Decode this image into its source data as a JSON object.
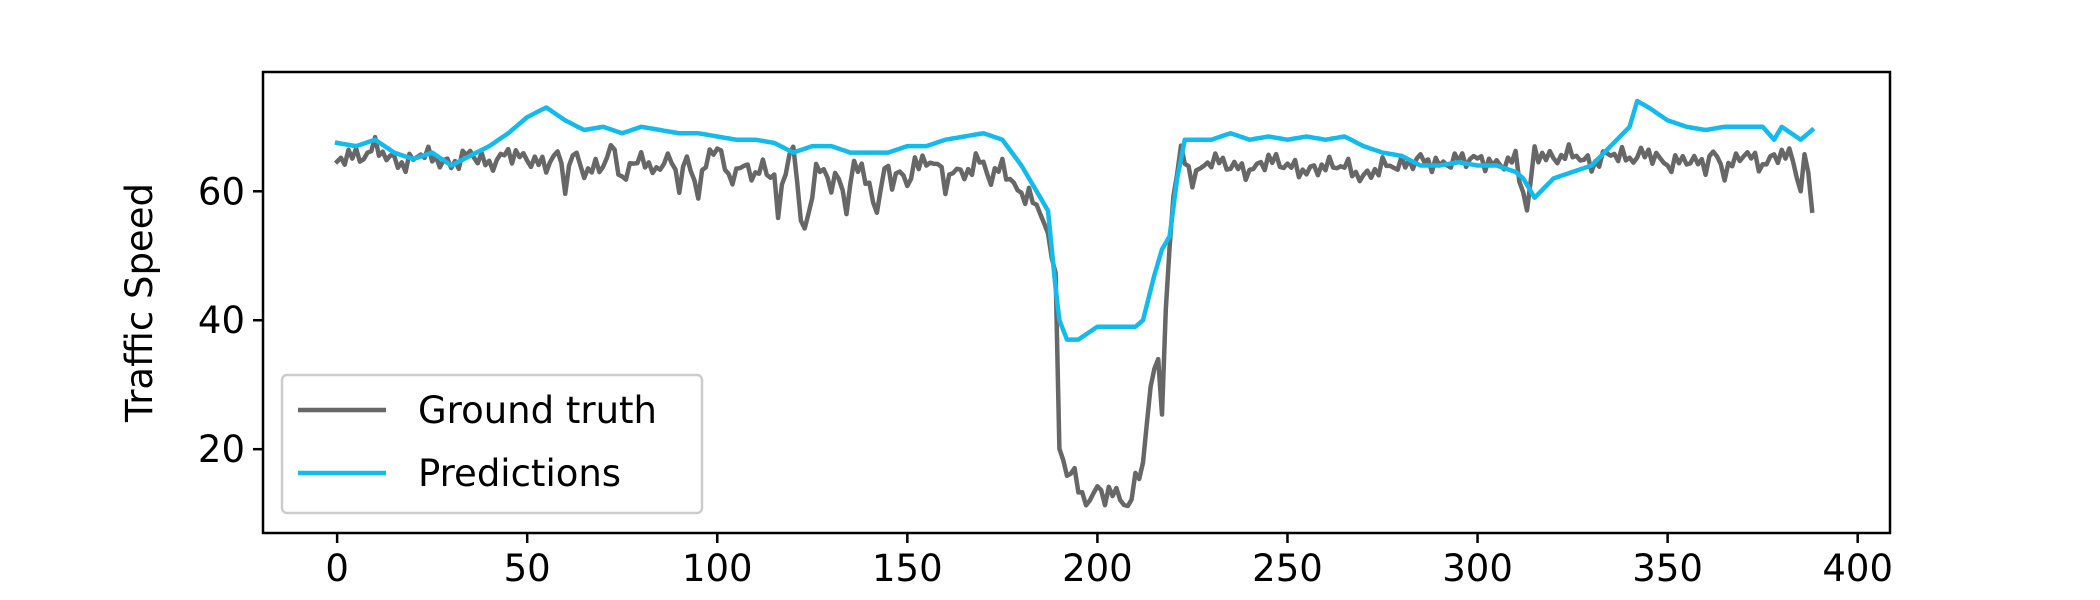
{
  "chart_data": {
    "type": "line",
    "title": "",
    "xlabel": "",
    "ylabel": "Traffic Speed",
    "xlim": [
      -19.5,
      408.5
    ],
    "ylim": [
      7.0,
      78.5
    ],
    "xticks": [
      0,
      50,
      100,
      150,
      200,
      250,
      300,
      350,
      400
    ],
    "yticks": [
      20,
      40,
      60
    ],
    "grid": false,
    "legend_position": "lower-left",
    "series": [
      {
        "name": "Ground truth",
        "color": "#676767",
        "anchors": [
          [
            0,
            64
          ],
          [
            3,
            66
          ],
          [
            6,
            65
          ],
          [
            10,
            67
          ],
          [
            14,
            65
          ],
          [
            18,
            64
          ],
          [
            22,
            66
          ],
          [
            26,
            65
          ],
          [
            30,
            64
          ],
          [
            35,
            66
          ],
          [
            40,
            64
          ],
          [
            45,
            66
          ],
          [
            50,
            65
          ],
          [
            55,
            64
          ],
          [
            58,
            66
          ],
          [
            60,
            61
          ],
          [
            62,
            66
          ],
          [
            65,
            63
          ],
          [
            70,
            64
          ],
          [
            72,
            67
          ],
          [
            75,
            62
          ],
          [
            78,
            64
          ],
          [
            80,
            66
          ],
          [
            82,
            63
          ],
          [
            85,
            64
          ],
          [
            88,
            65
          ],
          [
            90,
            61
          ],
          [
            92,
            65
          ],
          [
            95,
            60
          ],
          [
            98,
            66
          ],
          [
            100,
            67
          ],
          [
            103,
            62
          ],
          [
            105,
            63
          ],
          [
            108,
            64
          ],
          [
            110,
            62
          ],
          [
            112,
            64
          ],
          [
            115,
            62
          ],
          [
            116,
            56
          ],
          [
            118,
            64
          ],
          [
            120,
            67
          ],
          [
            122,
            55
          ],
          [
            124,
            56
          ],
          [
            126,
            63
          ],
          [
            128,
            64
          ],
          [
            130,
            60
          ],
          [
            132,
            63
          ],
          [
            134,
            57
          ],
          [
            136,
            64
          ],
          [
            138,
            64
          ],
          [
            140,
            60
          ],
          [
            142,
            57
          ],
          [
            144,
            64
          ],
          [
            146,
            61
          ],
          [
            148,
            64
          ],
          [
            150,
            60
          ],
          [
            152,
            65
          ],
          [
            155,
            64
          ],
          [
            158,
            65
          ],
          [
            160,
            60
          ],
          [
            162,
            64
          ],
          [
            165,
            62
          ],
          [
            168,
            65
          ],
          [
            170,
            64
          ],
          [
            172,
            62
          ],
          [
            175,
            64
          ],
          [
            178,
            61
          ],
          [
            180,
            59
          ],
          [
            182,
            60
          ],
          [
            184,
            57
          ],
          [
            186,
            56
          ],
          [
            188,
            50
          ],
          [
            189,
            46
          ],
          [
            190,
            21
          ],
          [
            192,
            16
          ],
          [
            194,
            16
          ],
          [
            196,
            13
          ],
          [
            198,
            11
          ],
          [
            200,
            15
          ],
          [
            202,
            12
          ],
          [
            205,
            14
          ],
          [
            208,
            10
          ],
          [
            210,
            16
          ],
          [
            212,
            17
          ],
          [
            214,
            30
          ],
          [
            216,
            35
          ],
          [
            217,
            24
          ],
          [
            218,
            42
          ],
          [
            220,
            60
          ],
          [
            222,
            66
          ],
          [
            225,
            62
          ],
          [
            230,
            65
          ],
          [
            235,
            64
          ],
          [
            240,
            63
          ],
          [
            245,
            65
          ],
          [
            250,
            64
          ],
          [
            255,
            63
          ],
          [
            260,
            64
          ],
          [
            265,
            64
          ],
          [
            270,
            62
          ],
          [
            275,
            64
          ],
          [
            280,
            64
          ],
          [
            285,
            65
          ],
          [
            290,
            64
          ],
          [
            295,
            65
          ],
          [
            300,
            65
          ],
          [
            305,
            64
          ],
          [
            310,
            65
          ],
          [
            312,
            60
          ],
          [
            313,
            57
          ],
          [
            315,
            66
          ],
          [
            320,
            65
          ],
          [
            325,
            66
          ],
          [
            330,
            64
          ],
          [
            335,
            66
          ],
          [
            340,
            65
          ],
          [
            345,
            66
          ],
          [
            350,
            64
          ],
          [
            355,
            65
          ],
          [
            360,
            64
          ],
          [
            362,
            66
          ],
          [
            365,
            63
          ],
          [
            370,
            66
          ],
          [
            375,
            64
          ],
          [
            380,
            66
          ],
          [
            383,
            65
          ],
          [
            385,
            60
          ],
          [
            386,
            66
          ],
          [
            388,
            57
          ]
        ]
      },
      {
        "name": "Predictions",
        "color": "#12bbec",
        "anchors": [
          [
            0,
            67.5
          ],
          [
            5,
            67
          ],
          [
            10,
            68
          ],
          [
            15,
            66
          ],
          [
            20,
            65
          ],
          [
            25,
            66
          ],
          [
            30,
            64
          ],
          [
            35,
            65.5
          ],
          [
            40,
            67
          ],
          [
            45,
            69
          ],
          [
            50,
            71.5
          ],
          [
            55,
            73
          ],
          [
            60,
            71
          ],
          [
            65,
            69.5
          ],
          [
            70,
            70
          ],
          [
            75,
            69
          ],
          [
            80,
            70
          ],
          [
            85,
            69.5
          ],
          [
            90,
            69
          ],
          [
            95,
            69
          ],
          [
            100,
            68.5
          ],
          [
            105,
            68
          ],
          [
            110,
            68
          ],
          [
            115,
            67.5
          ],
          [
            120,
            66
          ],
          [
            125,
            67
          ],
          [
            130,
            67
          ],
          [
            135,
            66
          ],
          [
            140,
            66
          ],
          [
            145,
            66
          ],
          [
            150,
            67
          ],
          [
            155,
            67
          ],
          [
            160,
            68
          ],
          [
            165,
            68.5
          ],
          [
            170,
            69
          ],
          [
            175,
            68
          ],
          [
            180,
            64
          ],
          [
            185,
            59
          ],
          [
            187,
            57
          ],
          [
            189,
            45
          ],
          [
            190,
            40
          ],
          [
            192,
            37
          ],
          [
            195,
            37
          ],
          [
            200,
            39
          ],
          [
            205,
            39
          ],
          [
            210,
            39
          ],
          [
            212,
            40
          ],
          [
            215,
            47
          ],
          [
            217,
            51
          ],
          [
            219,
            53
          ],
          [
            221,
            62
          ],
          [
            223,
            68
          ],
          [
            230,
            68
          ],
          [
            235,
            69
          ],
          [
            240,
            68
          ],
          [
            245,
            68.5
          ],
          [
            250,
            68
          ],
          [
            255,
            68.5
          ],
          [
            260,
            68
          ],
          [
            265,
            68.5
          ],
          [
            270,
            67
          ],
          [
            275,
            66
          ],
          [
            280,
            65.5
          ],
          [
            285,
            64
          ],
          [
            290,
            64
          ],
          [
            295,
            64.5
          ],
          [
            300,
            64
          ],
          [
            305,
            64
          ],
          [
            310,
            63
          ],
          [
            312,
            62
          ],
          [
            315,
            59
          ],
          [
            320,
            62
          ],
          [
            325,
            63
          ],
          [
            330,
            64
          ],
          [
            335,
            67
          ],
          [
            340,
            70
          ],
          [
            342,
            74
          ],
          [
            345,
            73
          ],
          [
            350,
            71
          ],
          [
            355,
            70
          ],
          [
            360,
            69.5
          ],
          [
            365,
            70
          ],
          [
            370,
            70
          ],
          [
            375,
            70
          ],
          [
            378,
            68
          ],
          [
            380,
            70
          ],
          [
            385,
            68
          ],
          [
            388,
            69.5
          ]
        ]
      }
    ]
  }
}
